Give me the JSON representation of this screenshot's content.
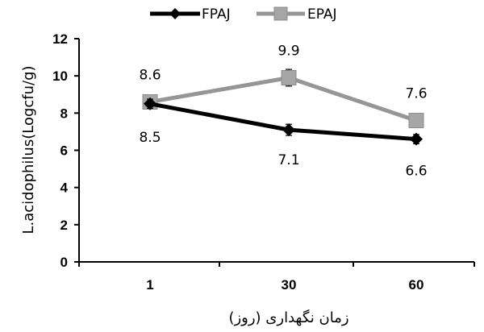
{
  "chart_data": {
    "type": "line",
    "categories": [
      "1",
      "30",
      "60"
    ],
    "series": [
      {
        "name": "FPAJ",
        "values": [
          8.5,
          7.1,
          6.6
        ],
        "error": [
          0.25,
          0.3,
          0.25
        ],
        "color": "#000000",
        "marker": "diamond"
      },
      {
        "name": "EPAJ",
        "values": [
          8.6,
          9.9,
          7.6
        ],
        "error": [
          0.2,
          0.45,
          0.2
        ],
        "color": "#969696",
        "marker": "square"
      }
    ],
    "data_labels": {
      "FPAJ": [
        "8.5",
        "7.1",
        "6.6"
      ],
      "EPAJ": [
        "8.6",
        "9.9",
        "7.6"
      ]
    },
    "xlabel": "زمان نگهداری (روز)",
    "ylabel": "L.acidophilus(Logcfu/g)",
    "ylim": [
      0,
      12
    ],
    "yticks": [
      0,
      2,
      4,
      6,
      8,
      10,
      12
    ],
    "grid": false,
    "legend_position": "top-center"
  }
}
